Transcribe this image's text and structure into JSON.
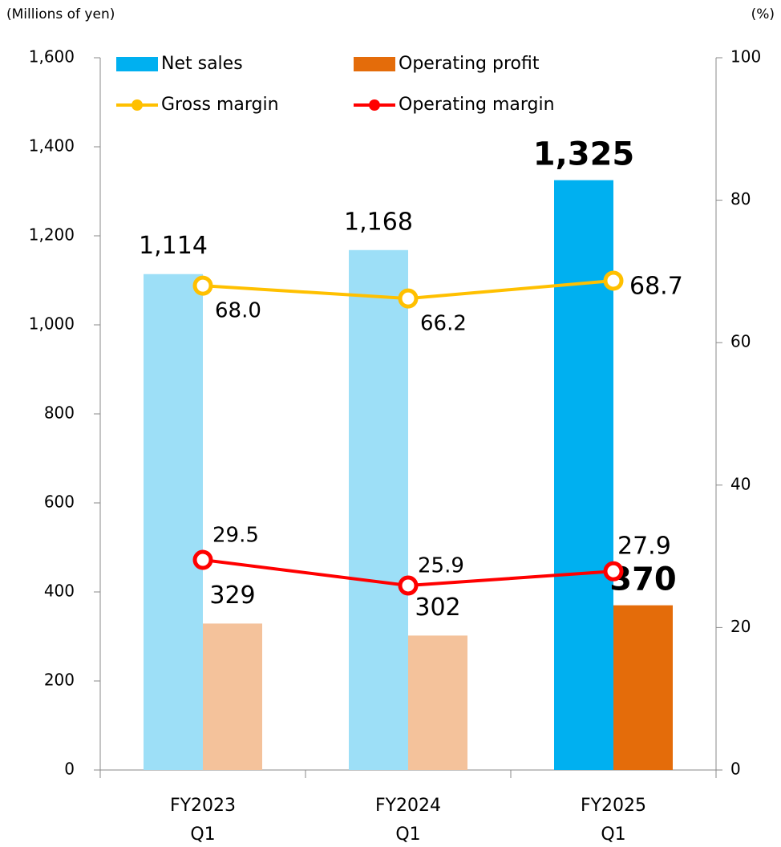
{
  "chart_data": {
    "type": "bar_line",
    "y_label": "(Millions of yen)",
    "y2_label": "(%)",
    "categories": [
      "FY2023\nQ1",
      "FY2024\nQ1",
      "FY2025\nQ1"
    ],
    "ylim": [
      0,
      1600
    ],
    "yticks": [
      0,
      200,
      400,
      600,
      800,
      {
        "value": 1000,
        "label": "1,000"
      },
      {
        "value": 1200,
        "label": "1,200"
      },
      {
        "value": 1400,
        "label": "1,400"
      },
      {
        "value": 1600,
        "label": "1,600"
      }
    ],
    "y2lim": [
      0,
      100
    ],
    "y2ticks": [
      0,
      20,
      40,
      60,
      80,
      100
    ],
    "series": [
      {
        "name": "Net sales",
        "kind": "bar",
        "color": "#00b0f0",
        "colors": [
          "#9ddff7",
          "#9ddff7",
          "#00b0f0"
        ],
        "values": [
          1114,
          1168,
          1325
        ],
        "value_labels": [
          "1,114",
          "1,168",
          "1,325"
        ]
      },
      {
        "name": "Operating profit",
        "kind": "bar",
        "color": "#e46c0a",
        "colors": [
          "#f4c29b",
          "#f4c29b",
          "#e46c0a"
        ],
        "values": [
          329,
          302,
          370
        ]
      },
      {
        "name": "Gross margin",
        "kind": "line",
        "axis": "y2",
        "color": "#ffc000",
        "values": [
          68.0,
          66.2,
          68.7
        ],
        "value_labels": [
          "68.0",
          "66.2",
          "68.7"
        ]
      },
      {
        "name": "Operating margin",
        "kind": "line",
        "axis": "y2",
        "color": "#ff0000",
        "values": [
          29.5,
          25.9,
          27.9
        ],
        "value_labels": [
          "29.5",
          "25.9",
          "27.9"
        ]
      }
    ]
  }
}
